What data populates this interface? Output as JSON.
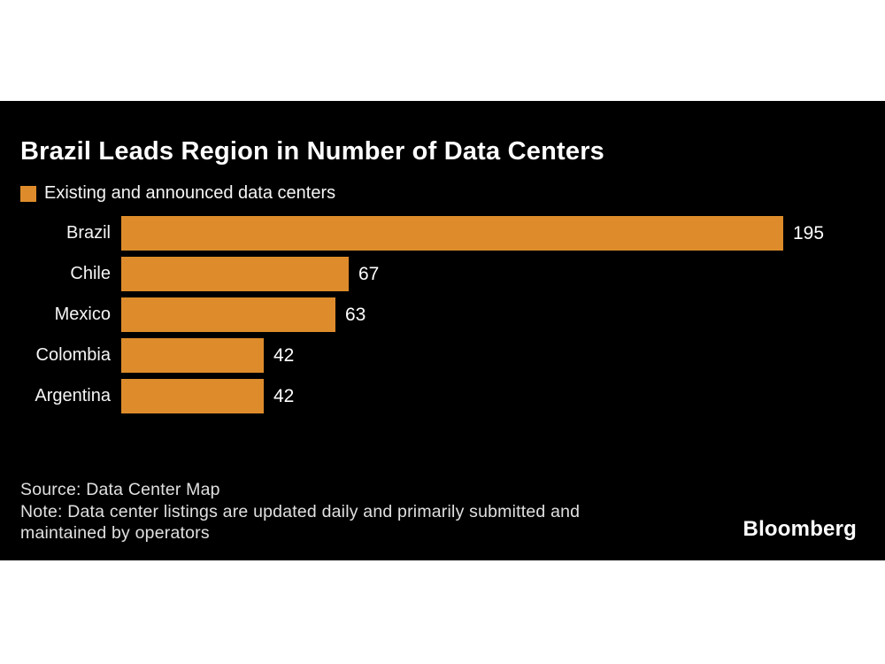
{
  "chart_data": {
    "type": "bar",
    "orientation": "horizontal",
    "title": "Brazil Leads Region in Number of Data Centers",
    "legend": [
      {
        "label": "Existing and announced data centers",
        "color": "#DE8C2B"
      }
    ],
    "categories": [
      "Brazil",
      "Chile",
      "Mexico",
      "Colombia",
      "Argentina"
    ],
    "values": [
      195,
      67,
      63,
      42,
      42
    ],
    "bar_color": "#DE8C2B",
    "xlim": [
      0,
      195
    ],
    "value_labels": true,
    "grid": false,
    "background": "#000000",
    "legend_position": "top-left"
  },
  "footer": {
    "source": "Source: Data Center Map",
    "note": "Note: Data center listings are updated daily and primarily submitted and maintained by operators",
    "note_lines": [
      "Note: Data center listings are updated daily and primarily submitted and",
      "maintained by operators"
    ]
  },
  "branding": {
    "logo": "Bloomberg"
  },
  "colors": {
    "accent_orange": "#DE8C2B",
    "panel_background": "#000000",
    "title_text": "#ffffff",
    "footer_text": "#e0e0e0",
    "page_background": "#ffffff"
  }
}
